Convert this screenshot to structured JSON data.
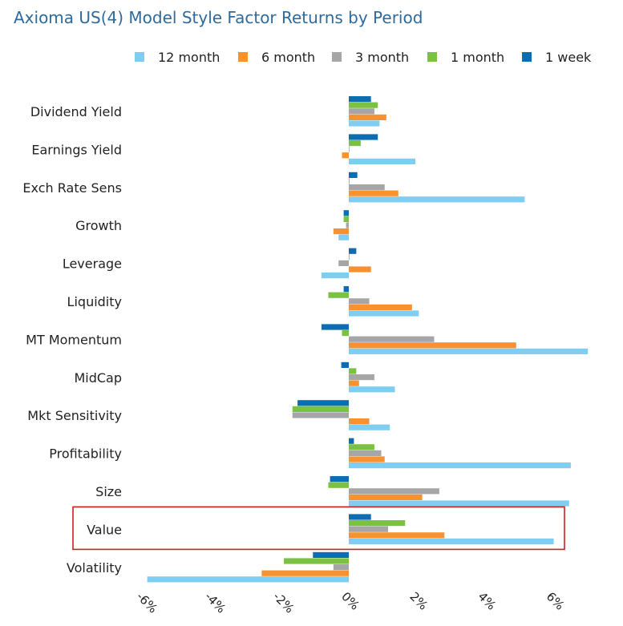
{
  "chart_data": {
    "type": "bar",
    "orientation": "horizontal",
    "title": "Axioma US(4) Model Style Factor Returns by Period",
    "categories": [
      "Dividend Yield",
      "Earnings Yield",
      "Exch Rate Sens",
      "Growth",
      "Leverage",
      "Liquidity",
      "MT Momentum",
      "MidCap",
      "Mkt Sensitivity",
      "Profitability",
      "Size",
      "Value",
      "Volatility"
    ],
    "series": [
      {
        "name": "12 month",
        "color": "#7fcdf0",
        "values": [
          0.9,
          1.95,
          5.15,
          -0.3,
          -0.8,
          2.05,
          7.0,
          1.35,
          1.2,
          6.5,
          6.45,
          6.0,
          -5.9
        ]
      },
      {
        "name": "6 month",
        "color": "#f7922e",
        "values": [
          1.1,
          -0.2,
          1.45,
          -0.45,
          0.65,
          1.85,
          4.9,
          0.3,
          0.6,
          1.05,
          2.15,
          2.8,
          -2.55
        ]
      },
      {
        "name": "3 month",
        "color": "#a6a6a6",
        "values": [
          0.75,
          0.02,
          1.05,
          -0.08,
          -0.3,
          0.6,
          2.5,
          0.75,
          -1.65,
          0.95,
          2.65,
          1.15,
          -0.45
        ]
      },
      {
        "name": "1 month",
        "color": "#7cc242",
        "values": [
          0.85,
          0.35,
          0.02,
          -0.15,
          0.02,
          -0.6,
          -0.2,
          0.22,
          -1.65,
          0.75,
          -0.6,
          1.65,
          -1.9
        ]
      },
      {
        "name": "1 week",
        "color": "#0c6db3",
        "values": [
          0.65,
          0.85,
          0.25,
          -0.15,
          0.22,
          -0.15,
          -0.8,
          -0.22,
          -1.5,
          0.15,
          -0.55,
          0.65,
          -1.05
        ]
      }
    ],
    "xlim": [
      -6,
      7
    ],
    "xticks": [
      "-6%",
      "-4%",
      "-2%",
      "0%",
      "2%",
      "4%",
      "6%"
    ],
    "xtick_values": [
      -6,
      -4,
      -2,
      0,
      2,
      4,
      6
    ],
    "legend_position": "top",
    "highlight": "Value",
    "highlight_color": "#cc1f1f",
    "grid": false
  }
}
